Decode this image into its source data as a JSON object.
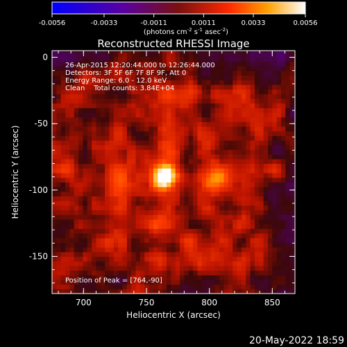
{
  "colorbar": {
    "ticks": [
      "-0.0056",
      "-0.0033",
      "-0.0011",
      "0.0011",
      "0.0033",
      "0.0056"
    ],
    "tick_values": [
      -0.0056,
      -0.0033,
      -0.0011,
      0.0011,
      0.0033,
      0.0056
    ],
    "range": [
      -0.0056,
      0.0056
    ],
    "units_main": "(photons cm",
    "units_sup1": "-2",
    "units_mid": " s",
    "units_sup2": "-1",
    "units_mid2": " asec",
    "units_sup3": "-2",
    "units_end": ")",
    "colors": [
      "#0000ff",
      "#5a00a0",
      "#7a1010",
      "#ff2a00",
      "#ffa000",
      "#ffffff"
    ]
  },
  "title": "Reconstructed RHESSI Image",
  "info_lines": [
    "26-Apr-2015 12:20:44.000 to 12:26:44.000",
    "Detectors: 3F 5F 6F 7F 8F 9F, Att 0",
    "Energy Range: 6.0 - 12.0 keV",
    "Clean    Total counts: 3.84E+04"
  ],
  "peak_text": "Position of Peak = [764,-90]",
  "footer_date": "20-May-2022 18:59",
  "chart_data": {
    "type": "heatmap",
    "title": "Reconstructed RHESSI Image",
    "xlabel": "Heliocentric X (arcsec)",
    "ylabel": "Heliocentric Y (arcsec)",
    "xlim": [
      675,
      868
    ],
    "ylim": [
      -178,
      5
    ],
    "xticks": [
      700,
      750,
      800,
      850
    ],
    "yticks": [
      0,
      -50,
      -100,
      -150
    ],
    "peak": {
      "x": 764,
      "y": -90,
      "value": 0.0056
    },
    "secondary_sources": [
      {
        "x": 805,
        "y": -90,
        "value": 0.003
      },
      {
        "x": 764,
        "y": -55,
        "value": 0.0016
      },
      {
        "x": 764,
        "y": -127,
        "value": 0.0016
      }
    ],
    "colorbar_label": "(photons cm-2 s-1 asec-2)"
  }
}
